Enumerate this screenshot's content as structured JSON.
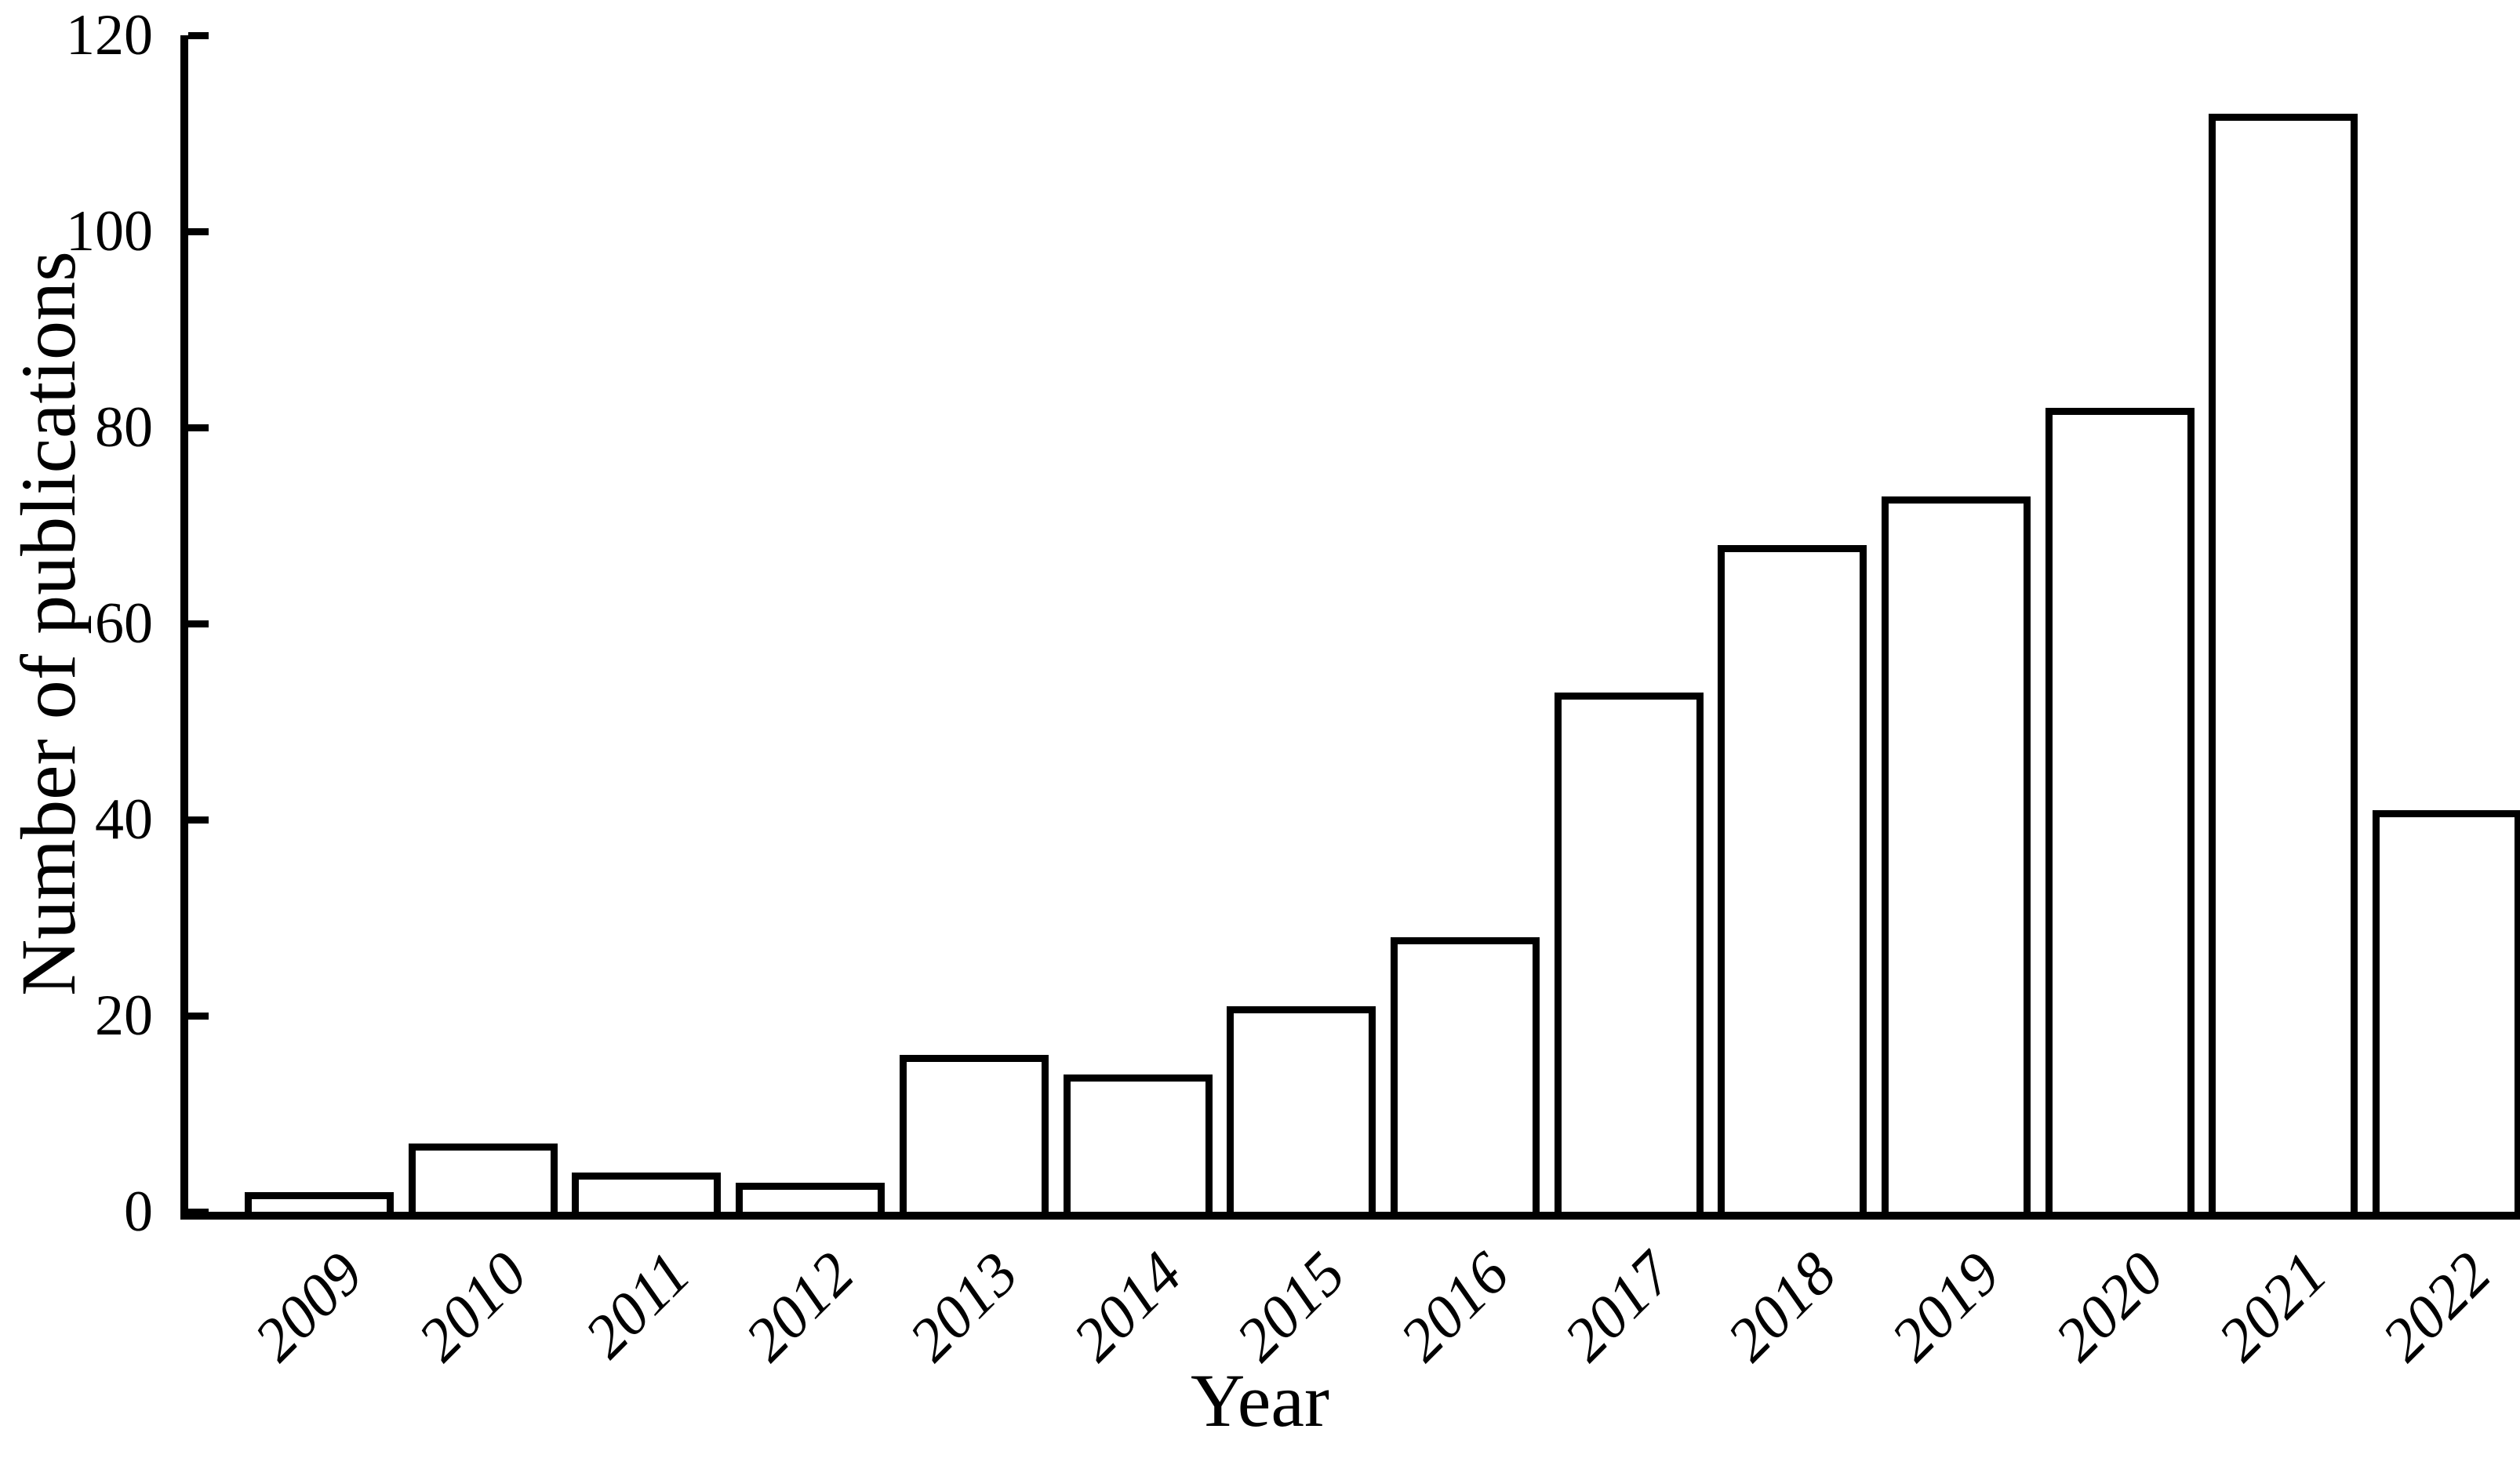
{
  "figure": {
    "background": "#ffffff",
    "ink_color": "#000000"
  },
  "chart_data": {
    "type": "bar",
    "title": "",
    "xlabel": "Year",
    "ylabel": "Number of publications",
    "categories": [
      "2009",
      "2010",
      "2011",
      "2012",
      "2013",
      "2014",
      "2015",
      "2016",
      "2017",
      "2018",
      "2019",
      "2020",
      "2021",
      "2022"
    ],
    "values": [
      2,
      7,
      4,
      3,
      16,
      14,
      21,
      28,
      53,
      68,
      73,
      82,
      112,
      41
    ],
    "ylim": [
      0,
      120
    ],
    "yticks": [
      0,
      20,
      40,
      60,
      80,
      100,
      120
    ],
    "grid": false,
    "legend_position": "none",
    "bar_fill": "#ffffff",
    "bar_border": "#000000",
    "x_tick_rotation_deg": 45
  }
}
